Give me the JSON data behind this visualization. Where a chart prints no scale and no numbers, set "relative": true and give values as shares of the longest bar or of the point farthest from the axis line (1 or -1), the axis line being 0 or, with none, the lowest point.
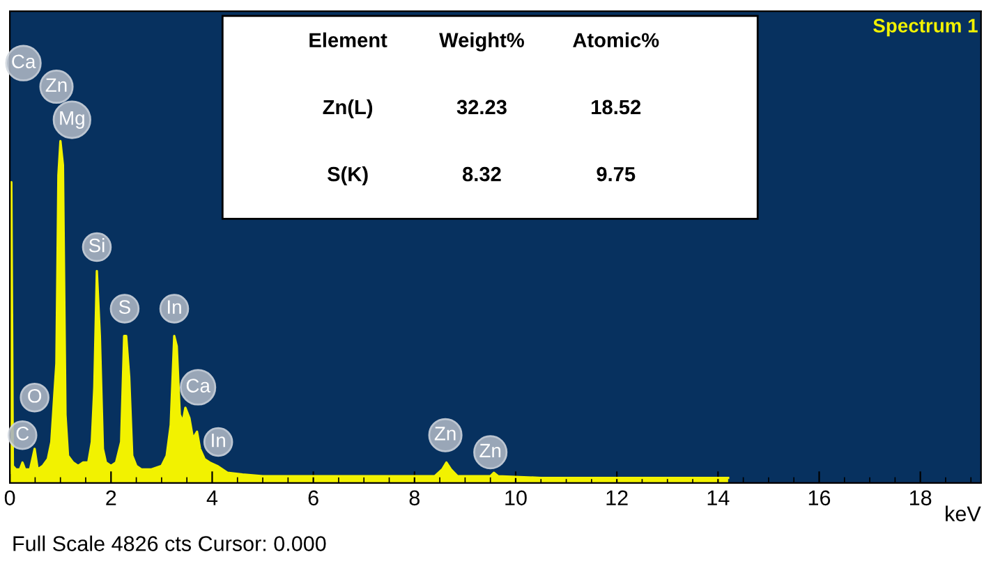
{
  "chart_data": {
    "type": "area",
    "relative": true,
    "xlabel": "keV",
    "x": [
      0,
      0.03,
      0.06,
      0.12,
      0.2,
      0.25,
      0.3,
      0.4,
      0.49,
      0.55,
      0.65,
      0.75,
      0.82,
      0.88,
      0.92,
      0.96,
      1.0,
      1.05,
      1.1,
      1.15,
      1.25,
      1.35,
      1.45,
      1.55,
      1.62,
      1.67,
      1.72,
      1.78,
      1.84,
      1.9,
      2.0,
      2.1,
      2.2,
      2.26,
      2.3,
      2.36,
      2.42,
      2.5,
      2.6,
      2.8,
      3.0,
      3.1,
      3.18,
      3.25,
      3.3,
      3.36,
      3.42,
      3.47,
      3.55,
      3.62,
      3.7,
      3.76,
      3.85,
      3.95,
      4.1,
      4.3,
      4.6,
      5.0,
      6.0,
      7.0,
      8.0,
      8.4,
      8.55,
      8.63,
      8.72,
      8.85,
      9.2,
      9.5,
      9.57,
      9.65,
      10.5,
      12.0,
      14.0,
      14.2
    ],
    "series": [
      {
        "color": "#f2f200",
        "values": [
          0.03,
          0.88,
          0.05,
          0.04,
          0.04,
          0.06,
          0.04,
          0.04,
          0.1,
          0.04,
          0.05,
          0.07,
          0.12,
          0.26,
          0.35,
          0.9,
          1.0,
          0.93,
          0.2,
          0.08,
          0.06,
          0.05,
          0.06,
          0.06,
          0.12,
          0.28,
          0.62,
          0.43,
          0.1,
          0.06,
          0.05,
          0.06,
          0.12,
          0.43,
          0.43,
          0.31,
          0.08,
          0.05,
          0.04,
          0.04,
          0.05,
          0.08,
          0.17,
          0.43,
          0.4,
          0.2,
          0.18,
          0.22,
          0.19,
          0.13,
          0.15,
          0.1,
          0.07,
          0.06,
          0.05,
          0.03,
          0.025,
          0.02,
          0.02,
          0.02,
          0.02,
          0.02,
          0.04,
          0.06,
          0.04,
          0.02,
          0.02,
          0.02,
          0.03,
          0.02,
          0.015,
          0.015,
          0.015,
          0.015
        ]
      }
    ],
    "xlim": [
      0,
      19.2
    ],
    "xticks": [
      0,
      2,
      4,
      6,
      8,
      10,
      12,
      14,
      16,
      18
    ],
    "tick_labels": "x",
    "grid": false,
    "legend": false,
    "annotations": [
      "Spectrum 1",
      "Full Scale 4826 cts Cursor: 0.000",
      "Element",
      "Weight%",
      "Atomic%",
      "Zn(L)",
      "32.23",
      "18.52",
      "S(K)",
      "8.32",
      "9.75",
      "Ca",
      "Zn",
      "Mg",
      {
        "text": "Si",
        "x": 1.72,
        "y": 0.69
      },
      {
        "text": "S",
        "x": 2.27,
        "y": 0.51
      },
      {
        "text": "In",
        "x": 3.25,
        "y": 0.51
      },
      {
        "text": "Ca",
        "x": 3.72,
        "y": 0.28
      },
      {
        "text": "In",
        "x": 4.12,
        "y": 0.12
      },
      {
        "text": "O",
        "x": 0.49,
        "y": 0.25
      },
      {
        "text": "C",
        "x": 0.25,
        "y": 0.14
      },
      {
        "text": "Zn",
        "x": 8.61,
        "y": 0.14
      },
      {
        "text": "Zn",
        "x": 9.5,
        "y": 0.09
      }
    ]
  }
}
